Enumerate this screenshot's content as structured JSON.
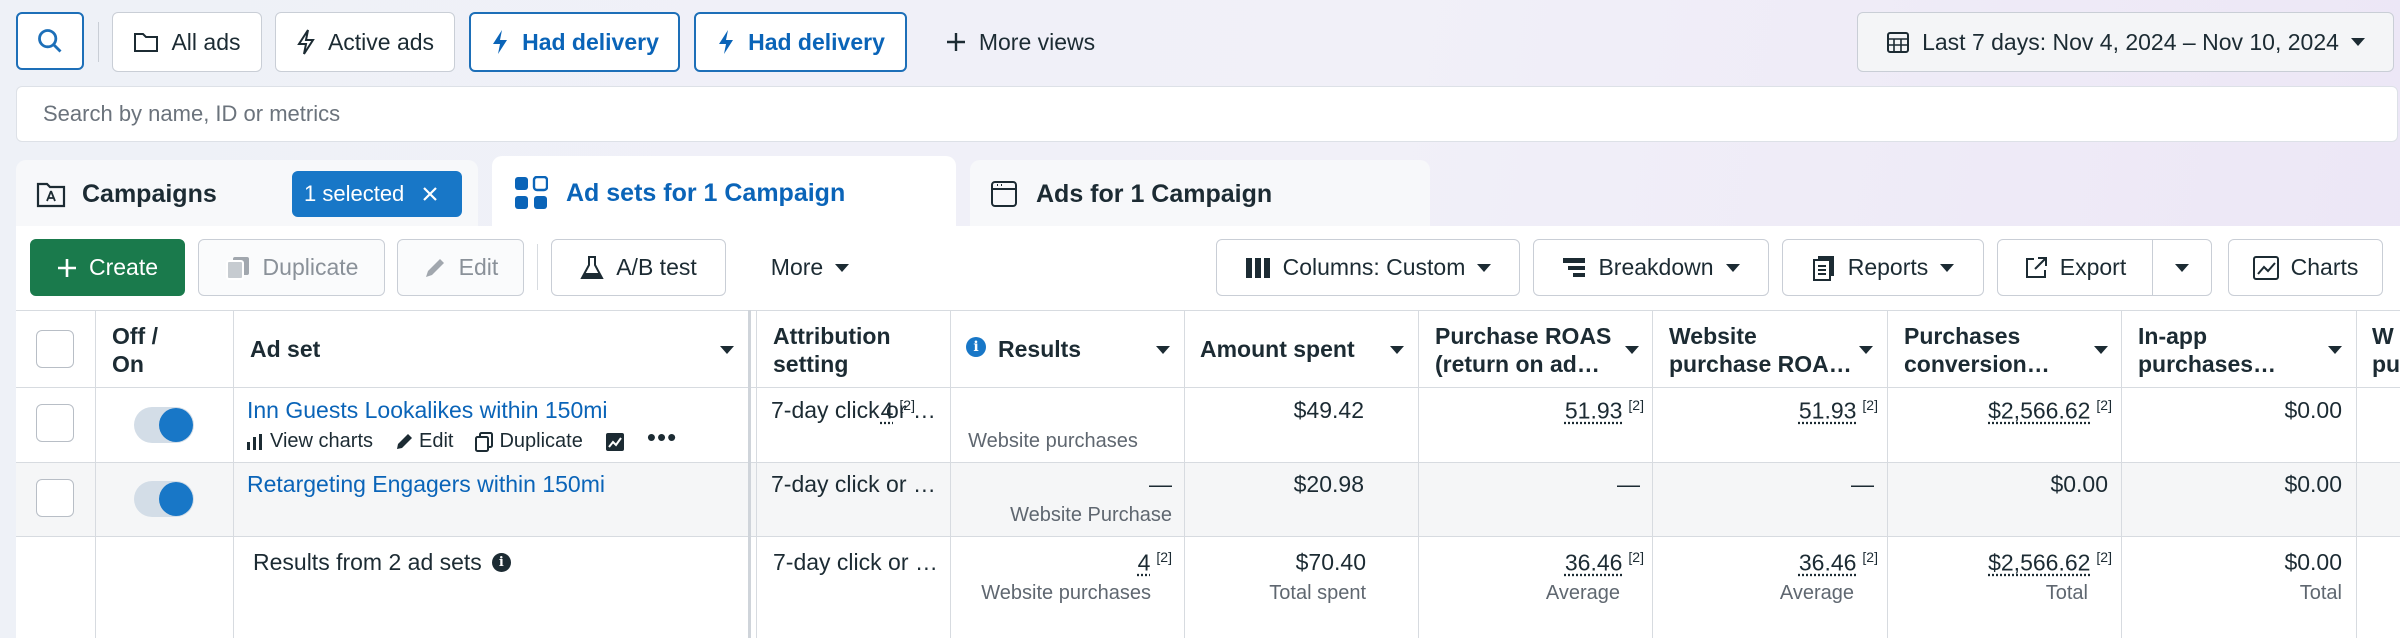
{
  "toolbar": {
    "all_ads": "All ads",
    "active_ads": "Active ads",
    "had_delivery_1": "Had delivery",
    "had_delivery_2": "Had delivery",
    "more_views": "More views",
    "date_range": "Last 7 days: Nov 4, 2024 – Nov 10, 2024"
  },
  "search": {
    "placeholder": "Search by name, ID or metrics"
  },
  "tabs": {
    "campaigns": "Campaigns",
    "selected_badge": "1 selected",
    "ad_sets": "Ad sets for 1 Campaign",
    "ads": "Ads for 1 Campaign"
  },
  "actions": {
    "create": "Create",
    "duplicate": "Duplicate",
    "edit": "Edit",
    "ab_test": "A/B test",
    "more": "More",
    "columns": "Columns: Custom",
    "breakdown": "Breakdown",
    "reports": "Reports",
    "export": "Export",
    "charts": "Charts"
  },
  "columns": {
    "off_on_1": "Off /",
    "off_on_2": "On",
    "ad_set": "Ad set",
    "attribution_1": "Attribution",
    "attribution_2": "setting",
    "results": "Results",
    "amount_spent": "Amount spent",
    "purchase_roas_1": "Purchase ROAS",
    "purchase_roas_2": "(return on ad…",
    "website_roas_1": "Website",
    "website_roas_2": "purchase ROA…",
    "purchases_conv_1": "Purchases",
    "purchases_conv_2": "conversion…",
    "inapp_1": "In-app",
    "inapp_2": "purchases…",
    "partial_1": "W",
    "partial_2": "pu"
  },
  "rows": [
    {
      "name": "Inn Guests Lookalikes within 150mi",
      "attribution": "7-day click or …",
      "results": "4",
      "results_sup": "[2]",
      "results_sub": "Website purchases",
      "amount": "$49.42",
      "purchase_roas": "51.93",
      "purchase_roas_sup": "[2]",
      "website_roas": "51.93",
      "website_roas_sup": "[2]",
      "purchases_conv": "$2,566.62",
      "purchases_conv_sup": "[2]",
      "inapp": "$0.00",
      "on": true
    },
    {
      "name": "Retargeting Engagers within 150mi",
      "attribution": "7-day click or …",
      "results": "—",
      "results_sub": "Website Purchase",
      "amount": "$20.98",
      "purchase_roas": "—",
      "website_roas": "—",
      "purchases_conv": "$0.00",
      "inapp": "$0.00",
      "on": true
    }
  ],
  "row_actions": {
    "view_charts": "View charts",
    "edit": "Edit",
    "duplicate": "Duplicate"
  },
  "summary": {
    "label": "Results from 2 ad sets",
    "attribution": "7-day click or …",
    "results": "4",
    "results_sup": "[2]",
    "results_sub": "Website purchases",
    "amount": "$70.40",
    "amount_sub": "Total spent",
    "purchase_roas": "36.46",
    "purchase_roas_sup": "[2]",
    "purchase_roas_sub": "Average",
    "website_roas": "36.46",
    "website_roas_sup": "[2]",
    "website_roas_sub": "Average",
    "purchases_conv": "$2,566.62",
    "purchases_conv_sup": "[2]",
    "purchases_conv_sub": "Total",
    "inapp": "$0.00",
    "inapp_sub": "Total"
  },
  "colors": {
    "accent": "#1877c7",
    "create_green": "#1a7a4c"
  }
}
